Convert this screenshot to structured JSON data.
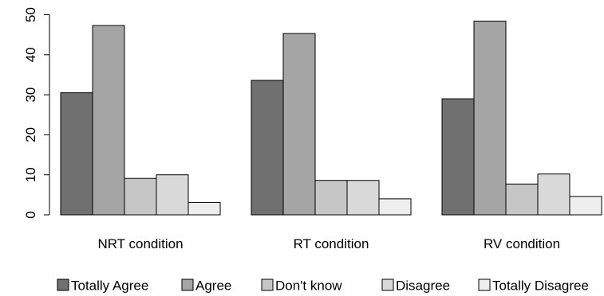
{
  "chart_data": {
    "type": "bar",
    "categories": [
      "NRT condition",
      "RT condition",
      "RV condition"
    ],
    "series": [
      {
        "name": "Totally Agree",
        "color": "#707070",
        "values": [
          30.5,
          33.6,
          29.0
        ]
      },
      {
        "name": "Agree",
        "color": "#a5a5a5",
        "values": [
          47.3,
          45.3,
          48.4
        ]
      },
      {
        "name": "Don't know",
        "color": "#c6c6c6",
        "values": [
          9.1,
          8.6,
          7.7
        ]
      },
      {
        "name": "Disagree",
        "color": "#d9d9d9",
        "values": [
          10.0,
          8.6,
          10.2
        ]
      },
      {
        "name": "Totally Disagree",
        "color": "#eeeeee",
        "values": [
          3.1,
          4.0,
          4.6
        ]
      }
    ],
    "ylim": [
      0,
      50
    ],
    "yticks": [
      0,
      10,
      20,
      30,
      40,
      50
    ],
    "title": "",
    "xlabel": "",
    "ylabel": "",
    "grid": false,
    "legend": "bottom"
  }
}
